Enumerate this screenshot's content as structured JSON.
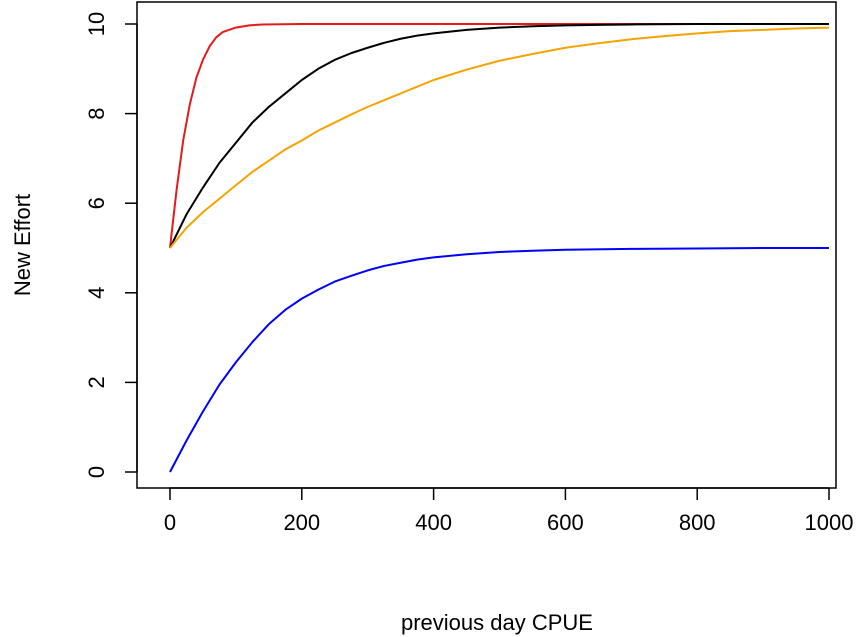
{
  "chart_data": {
    "type": "line",
    "title": "",
    "xlabel": "previous day CPUE",
    "ylabel": "New Effort",
    "xlim": [
      0,
      1000
    ],
    "ylim": [
      0,
      10
    ],
    "x_ticks": [
      0,
      200,
      400,
      600,
      800,
      1000
    ],
    "y_ticks": [
      0,
      2,
      4,
      6,
      8,
      10
    ],
    "x_tick_labels": [
      "0",
      "200",
      "400",
      "600",
      "800",
      "1000"
    ],
    "y_tick_labels": [
      "0",
      "2",
      "4",
      "6",
      "8",
      "10"
    ],
    "grid": false,
    "legend": "none",
    "series": [
      {
        "color": "#e41a1c",
        "x": [
          0,
          10,
          20,
          30,
          40,
          50,
          60,
          70,
          80,
          100,
          120,
          140,
          200,
          300,
          400,
          600,
          800,
          1000
        ],
        "y": [
          5.0,
          6.3,
          7.4,
          8.2,
          8.8,
          9.2,
          9.5,
          9.7,
          9.82,
          9.92,
          9.97,
          9.99,
          10.0,
          10.0,
          10.0,
          10.0,
          10.0,
          10.0
        ]
      },
      {
        "color": "#000000",
        "x": [
          0,
          25,
          50,
          75,
          100,
          125,
          150,
          175,
          200,
          225,
          250,
          275,
          300,
          325,
          350,
          375,
          400,
          450,
          500,
          550,
          600,
          650,
          700,
          800,
          900,
          1000
        ],
        "y": [
          5.0,
          5.75,
          6.35,
          6.9,
          7.35,
          7.8,
          8.15,
          8.45,
          8.75,
          9.0,
          9.2,
          9.35,
          9.47,
          9.58,
          9.67,
          9.74,
          9.79,
          9.87,
          9.92,
          9.95,
          9.97,
          9.98,
          9.99,
          10.0,
          10.0,
          10.0
        ]
      },
      {
        "color": "#f5a300",
        "x": [
          0,
          25,
          50,
          75,
          100,
          125,
          150,
          175,
          200,
          225,
          250,
          275,
          300,
          350,
          400,
          450,
          500,
          550,
          600,
          650,
          700,
          750,
          800,
          850,
          900,
          950,
          1000
        ],
        "y": [
          5.0,
          5.45,
          5.8,
          6.1,
          6.4,
          6.7,
          6.95,
          7.2,
          7.4,
          7.62,
          7.8,
          7.98,
          8.15,
          8.45,
          8.75,
          8.98,
          9.18,
          9.33,
          9.47,
          9.57,
          9.66,
          9.73,
          9.79,
          9.84,
          9.87,
          9.9,
          9.92
        ]
      },
      {
        "color": "#0000ff",
        "x": [
          0,
          25,
          50,
          75,
          100,
          125,
          150,
          175,
          200,
          225,
          250,
          275,
          300,
          325,
          350,
          375,
          400,
          450,
          500,
          550,
          600,
          700,
          800,
          900,
          1000
        ],
        "y": [
          0.0,
          0.7,
          1.35,
          1.95,
          2.45,
          2.9,
          3.3,
          3.62,
          3.87,
          4.07,
          4.25,
          4.38,
          4.5,
          4.6,
          4.67,
          4.74,
          4.79,
          4.86,
          4.91,
          4.94,
          4.96,
          4.98,
          4.99,
          5.0,
          5.0
        ]
      }
    ]
  }
}
